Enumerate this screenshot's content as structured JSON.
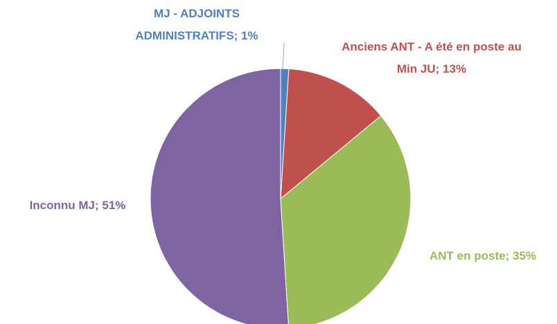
{
  "chart_data": {
    "type": "pie",
    "values": [
      1,
      13,
      35,
      51
    ],
    "value_labels": [
      "MJ - ADJOINTS ADMINISTRATIFS; 1%",
      "Anciens ANT - A été en poste au Min JU; 13%",
      "ANT en poste; 35%",
      "Inconnu MJ; 51%"
    ],
    "colors": [
      "#4f81bd",
      "#c0504d",
      "#9bbb59",
      "#8064a2"
    ]
  }
}
